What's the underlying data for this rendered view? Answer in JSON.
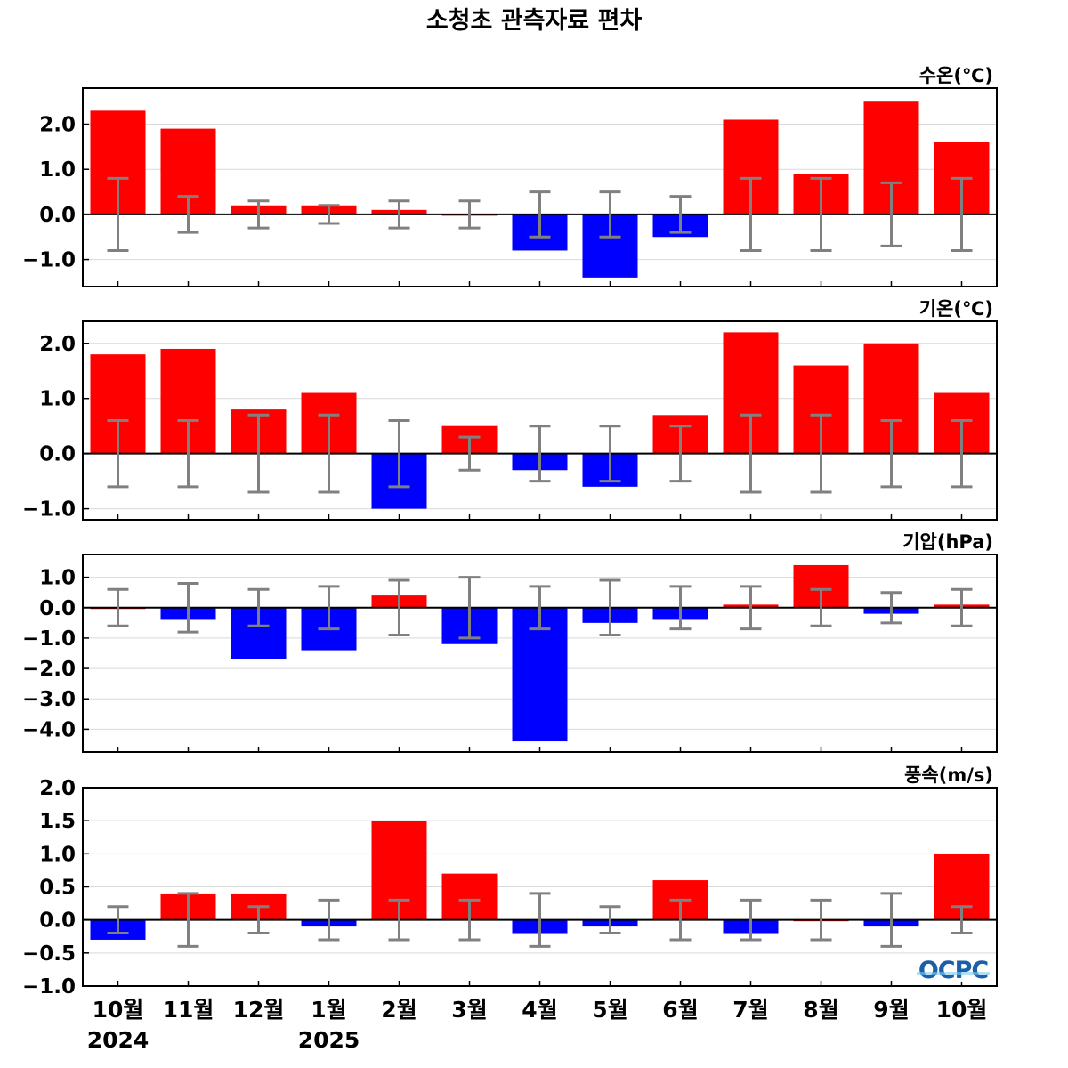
{
  "title": "소청초 관측자료 편차",
  "logo_text": "OCPC",
  "colors": {
    "positive": "#ff0000",
    "negative": "#0000ff",
    "errorbar": "#808080",
    "grid": "#d9d9d9",
    "zero": "#000000"
  },
  "chart_data": [
    {
      "type": "bar",
      "label": "수온(℃)",
      "categories": [
        "10월",
        "11월",
        "12월",
        "1월",
        "2월",
        "3월",
        "4월",
        "5월",
        "6월",
        "7월",
        "8월",
        "9월",
        "10월"
      ],
      "year_labels": [
        "2024",
        "2025"
      ],
      "ylim": [
        -1.6,
        2.8
      ],
      "yticks": [
        -1.0,
        0.0,
        1.0,
        2.0
      ],
      "ytick_labels": [
        "−1.0",
        "0.0",
        "1.0",
        "2.0"
      ],
      "values": [
        2.3,
        1.9,
        0.2,
        0.2,
        0.1,
        0.0,
        -0.8,
        -1.4,
        -0.5,
        2.1,
        0.9,
        2.5,
        1.6
      ],
      "error": [
        0.8,
        0.4,
        0.3,
        0.2,
        0.3,
        0.3,
        0.5,
        0.5,
        0.4,
        0.8,
        0.8,
        0.7,
        0.8
      ],
      "grid": true
    },
    {
      "type": "bar",
      "label": "기온(℃)",
      "categories": [
        "10월",
        "11월",
        "12월",
        "1월",
        "2월",
        "3월",
        "4월",
        "5월",
        "6월",
        "7월",
        "8월",
        "9월",
        "10월"
      ],
      "ylim": [
        -1.2,
        2.4
      ],
      "yticks": [
        -1.0,
        0.0,
        1.0,
        2.0
      ],
      "ytick_labels": [
        "−1.0",
        "0.0",
        "1.0",
        "2.0"
      ],
      "values": [
        1.8,
        1.9,
        0.8,
        1.1,
        -1.0,
        0.5,
        -0.3,
        -0.6,
        0.7,
        2.2,
        1.6,
        2.0,
        1.1
      ],
      "error": [
        0.6,
        0.6,
        0.7,
        0.7,
        0.6,
        0.3,
        0.5,
        0.5,
        0.5,
        0.7,
        0.7,
        0.6,
        0.6
      ],
      "grid": true
    },
    {
      "type": "bar",
      "label": "기압(hPa)",
      "categories": [
        "10월",
        "11월",
        "12월",
        "1월",
        "2월",
        "3월",
        "4월",
        "5월",
        "6월",
        "7월",
        "8월",
        "9월",
        "10월"
      ],
      "ylim": [
        -4.75,
        1.75
      ],
      "yticks": [
        -4.0,
        -3.0,
        -2.0,
        -1.0,
        0.0,
        1.0
      ],
      "ytick_labels": [
        "−4.0",
        "−3.0",
        "−2.0",
        "−1.0",
        "0.0",
        "1.0"
      ],
      "values": [
        0.0,
        -0.4,
        -1.7,
        -1.4,
        0.4,
        -1.2,
        -4.4,
        -0.5,
        -0.4,
        0.1,
        1.4,
        -0.2,
        0.1
      ],
      "error": [
        0.6,
        0.8,
        0.6,
        0.7,
        0.9,
        1.0,
        0.7,
        0.9,
        0.7,
        0.7,
        0.6,
        0.5,
        0.6
      ],
      "grid": true
    },
    {
      "type": "bar",
      "label": "풍속(m/s)",
      "categories": [
        "10월",
        "11월",
        "12월",
        "1월",
        "2월",
        "3월",
        "4월",
        "5월",
        "6월",
        "7월",
        "8월",
        "9월",
        "10월"
      ],
      "ylim": [
        -1.0,
        2.0
      ],
      "yticks": [
        -1.0,
        -0.5,
        0.0,
        0.5,
        1.0,
        1.5,
        2.0
      ],
      "ytick_labels": [
        "−1.0",
        "−0.5",
        "0.0",
        "0.5",
        "1.0",
        "1.5",
        "2.0"
      ],
      "values": [
        -0.3,
        0.4,
        0.4,
        -0.1,
        1.5,
        0.7,
        -0.2,
        -0.1,
        0.6,
        -0.2,
        0.0,
        -0.1,
        1.0
      ],
      "error": [
        0.2,
        0.4,
        0.2,
        0.3,
        0.3,
        0.3,
        0.4,
        0.2,
        0.3,
        0.3,
        0.3,
        0.4,
        0.2
      ],
      "grid": true
    }
  ]
}
